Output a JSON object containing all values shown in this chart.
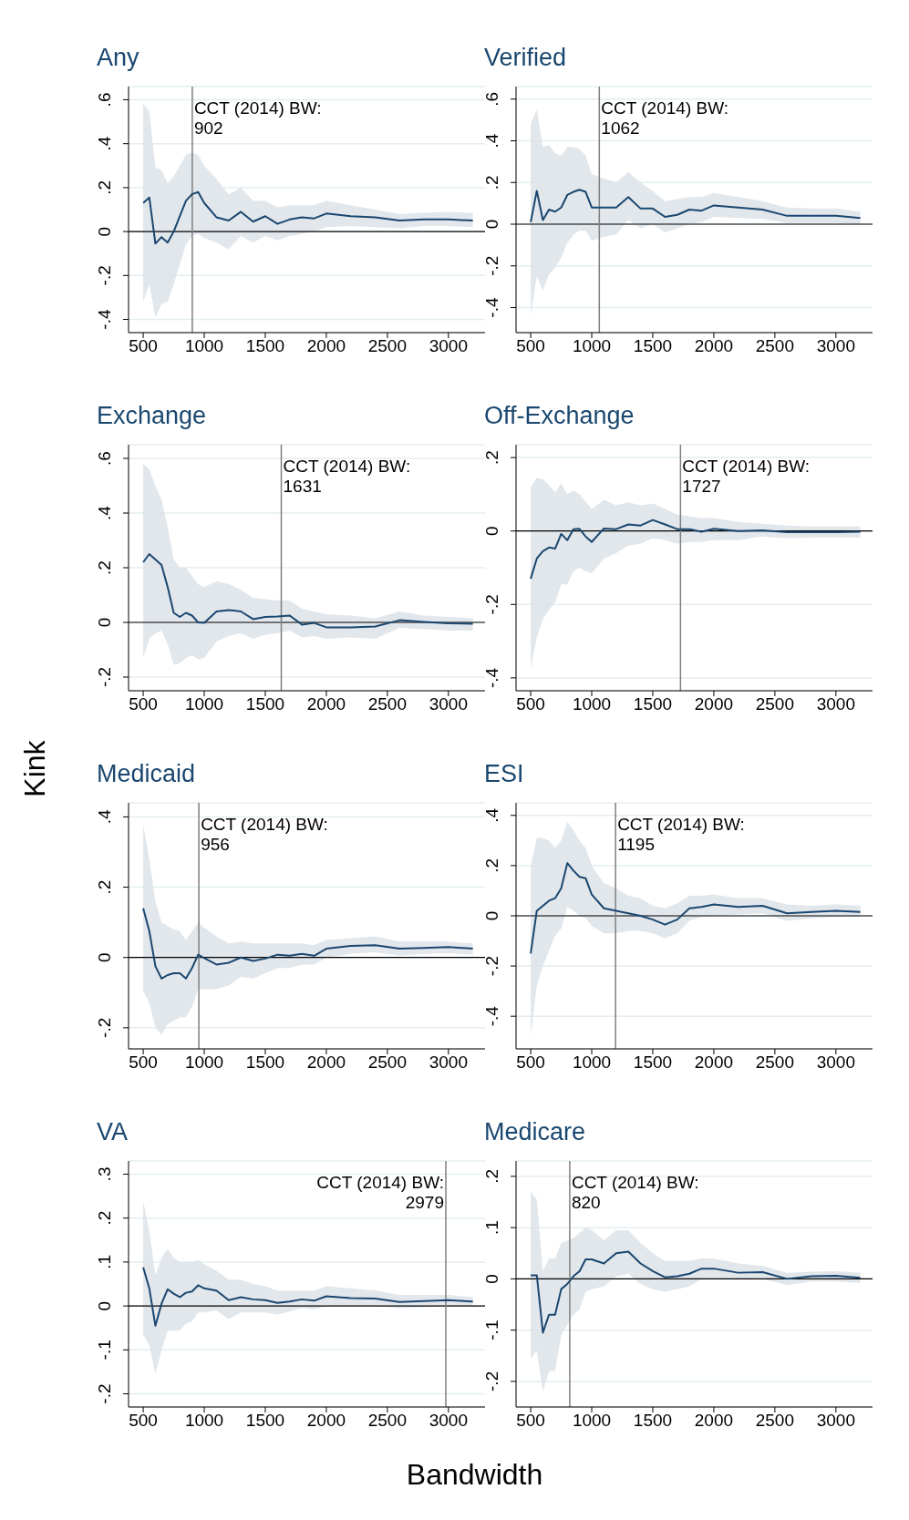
{
  "chart_data": [
    {
      "type": "line",
      "title": "Any",
      "grid": "y",
      "x": [
        500,
        550,
        600,
        650,
        700,
        750,
        800,
        850,
        900,
        950,
        1000,
        1100,
        1200,
        1300,
        1400,
        1500,
        1600,
        1700,
        1800,
        1900,
        2000,
        2200,
        2400,
        2600,
        2800,
        3000,
        3200
      ],
      "xlim": [
        380,
        3300
      ],
      "xticks": [
        500,
        1000,
        1500,
        2000,
        2500,
        3000
      ],
      "ylim": [
        -0.46,
        0.66
      ],
      "yticks": [
        {
          "value": -0.4,
          "label": "-.4"
        },
        {
          "value": -0.2,
          "label": "-.2"
        },
        {
          "value": 0,
          "label": "0"
        },
        {
          "value": 0.2,
          "label": ".2"
        },
        {
          "value": 0.4,
          "label": ".4"
        },
        {
          "value": 0.6,
          "label": ".6"
        }
      ],
      "series": [
        {
          "color": "#1a476f",
          "values": [
            0.13,
            0.155,
            -0.055,
            -0.025,
            -0.05,
            0.0,
            0.07,
            0.14,
            0.17,
            0.18,
            0.13,
            0.065,
            0.05,
            0.09,
            0.045,
            0.07,
            0.035,
            0.055,
            0.065,
            0.06,
            0.082,
            0.07,
            0.065,
            0.05,
            0.055,
            0.055,
            0.05
          ],
          "lower": [
            -0.32,
            -0.24,
            -0.39,
            -0.33,
            -0.32,
            -0.24,
            -0.15,
            -0.06,
            -0.02,
            -0.01,
            -0.03,
            -0.05,
            -0.08,
            -0.02,
            -0.05,
            -0.02,
            -0.04,
            -0.02,
            -0.01,
            0.0,
            0.02,
            0.025,
            0.02,
            0.015,
            0.025,
            0.025,
            0.02
          ],
          "upper": [
            0.58,
            0.55,
            0.29,
            0.28,
            0.22,
            0.25,
            0.3,
            0.35,
            0.36,
            0.35,
            0.3,
            0.24,
            0.17,
            0.2,
            0.14,
            0.14,
            0.11,
            0.12,
            0.12,
            0.12,
            0.14,
            0.12,
            0.1,
            0.08,
            0.085,
            0.09,
            0.085
          ]
        }
      ],
      "ref_lines": [
        {
          "axis": "y",
          "value": 0,
          "color": "#000000"
        },
        {
          "axis": "x",
          "value": 902,
          "label": "CCT (2014) BW: 902",
          "color": "#7f7f7f"
        }
      ]
    },
    {
      "type": "line",
      "title": "Verified",
      "grid": "y",
      "x": [
        500,
        550,
        600,
        650,
        700,
        750,
        800,
        850,
        900,
        950,
        1000,
        1100,
        1200,
        1300,
        1400,
        1500,
        1600,
        1700,
        1800,
        1900,
        2000,
        2200,
        2400,
        2600,
        2800,
        3000,
        3200
      ],
      "xlim": [
        380,
        3300
      ],
      "xticks": [
        500,
        1000,
        1500,
        2000,
        2500,
        3000
      ],
      "ylim": [
        -0.52,
        0.66
      ],
      "yticks": [
        {
          "value": -0.4,
          "label": "-.4"
        },
        {
          "value": -0.2,
          "label": "-.2"
        },
        {
          "value": 0,
          "label": "0"
        },
        {
          "value": 0.2,
          "label": ".2"
        },
        {
          "value": 0.4,
          "label": ".4"
        },
        {
          "value": 0.6,
          "label": ".6"
        }
      ],
      "series": [
        {
          "color": "#1a476f",
          "values": [
            0.01,
            0.16,
            0.02,
            0.07,
            0.06,
            0.08,
            0.14,
            0.155,
            0.165,
            0.155,
            0.08,
            0.08,
            0.08,
            0.13,
            0.075,
            0.075,
            0.035,
            0.045,
            0.07,
            0.065,
            0.09,
            0.08,
            0.07,
            0.04,
            0.04,
            0.04,
            0.03
          ],
          "lower": [
            -0.44,
            -0.25,
            -0.32,
            -0.24,
            -0.21,
            -0.16,
            -0.09,
            -0.05,
            -0.03,
            -0.03,
            -0.08,
            -0.06,
            -0.05,
            0.02,
            -0.02,
            0.0,
            -0.04,
            -0.02,
            0.0,
            0.01,
            0.035,
            0.03,
            0.025,
            0.005,
            0.005,
            0.005,
            0.0
          ],
          "upper": [
            0.48,
            0.55,
            0.37,
            0.38,
            0.34,
            0.33,
            0.37,
            0.37,
            0.36,
            0.33,
            0.24,
            0.22,
            0.2,
            0.25,
            0.2,
            0.16,
            0.11,
            0.12,
            0.13,
            0.13,
            0.15,
            0.13,
            0.11,
            0.08,
            0.075,
            0.075,
            0.06
          ]
        }
      ],
      "ref_lines": [
        {
          "axis": "y",
          "value": 0,
          "color": "#000000"
        },
        {
          "axis": "x",
          "value": 1062,
          "label": "CCT (2014) BW: 1062",
          "color": "#7f7f7f"
        }
      ]
    },
    {
      "type": "line",
      "title": "Exchange",
      "grid": "y",
      "x": [
        500,
        550,
        600,
        650,
        700,
        750,
        800,
        850,
        900,
        950,
        1000,
        1100,
        1200,
        1300,
        1400,
        1500,
        1600,
        1700,
        1800,
        1900,
        2000,
        2200,
        2400,
        2600,
        2800,
        3000,
        3200
      ],
      "xlim": [
        380,
        3300
      ],
      "xticks": [
        500,
        1000,
        1500,
        2000,
        2500,
        3000
      ],
      "ylim": [
        -0.25,
        0.65
      ],
      "yticks": [
        {
          "value": -0.2,
          "label": "-.2"
        },
        {
          "value": 0,
          "label": "0"
        },
        {
          "value": 0.2,
          "label": ".2"
        },
        {
          "value": 0.4,
          "label": ".4"
        },
        {
          "value": 0.6,
          "label": ".6"
        }
      ],
      "series": [
        {
          "color": "#1a476f",
          "values": [
            0.22,
            0.25,
            0.23,
            0.21,
            0.13,
            0.035,
            0.02,
            0.035,
            0.025,
            0.0,
            -0.002,
            0.04,
            0.045,
            0.04,
            0.012,
            0.02,
            0.022,
            0.025,
            -0.008,
            -0.002,
            -0.018,
            -0.018,
            -0.015,
            0.008,
            0.002,
            -0.003,
            -0.005
          ],
          "lower": [
            -0.13,
            -0.06,
            -0.04,
            -0.03,
            -0.08,
            -0.155,
            -0.15,
            -0.13,
            -0.12,
            -0.135,
            -0.13,
            -0.07,
            -0.05,
            -0.04,
            -0.06,
            -0.045,
            -0.04,
            -0.03,
            -0.055,
            -0.05,
            -0.06,
            -0.055,
            -0.06,
            -0.02,
            -0.025,
            -0.03,
            -0.03
          ],
          "upper": [
            0.58,
            0.56,
            0.5,
            0.45,
            0.35,
            0.23,
            0.2,
            0.2,
            0.17,
            0.14,
            0.13,
            0.15,
            0.14,
            0.12,
            0.09,
            0.085,
            0.08,
            0.08,
            0.05,
            0.04,
            0.03,
            0.025,
            0.015,
            0.04,
            0.025,
            0.02,
            0.015
          ]
        }
      ],
      "ref_lines": [
        {
          "axis": "y",
          "value": 0,
          "color": "#000000"
        },
        {
          "axis": "x",
          "value": 1631,
          "label": "CCT (2014) BW: 1631",
          "color": "#7f7f7f"
        }
      ]
    },
    {
      "type": "line",
      "title": "Off-Exchange",
      "grid": "y",
      "x": [
        500,
        550,
        600,
        650,
        700,
        750,
        800,
        850,
        900,
        950,
        1000,
        1100,
        1200,
        1300,
        1400,
        1500,
        1600,
        1700,
        1800,
        1900,
        2000,
        2200,
        2400,
        2600,
        2800,
        3000,
        3200
      ],
      "xlim": [
        380,
        3300
      ],
      "xticks": [
        500,
        1000,
        1500,
        2000,
        2500,
        3000
      ],
      "ylim": [
        -0.435,
        0.235
      ],
      "yticks": [
        {
          "value": -0.4,
          "label": "-.4"
        },
        {
          "value": -0.2,
          "label": "-.2"
        },
        {
          "value": 0,
          "label": "0"
        },
        {
          "value": 0.2,
          "label": ".2"
        }
      ],
      "series": [
        {
          "color": "#1a476f",
          "values": [
            -0.13,
            -0.075,
            -0.055,
            -0.045,
            -0.048,
            -0.008,
            -0.025,
            0.005,
            0.006,
            -0.015,
            -0.03,
            0.007,
            0.005,
            0.018,
            0.015,
            0.03,
            0.018,
            0.005,
            0.005,
            -0.002,
            0.006,
            0.0,
            0.002,
            -0.003,
            -0.003,
            -0.003,
            -0.002
          ],
          "lower": [
            -0.375,
            -0.29,
            -0.24,
            -0.215,
            -0.195,
            -0.145,
            -0.145,
            -0.11,
            -0.1,
            -0.11,
            -0.115,
            -0.075,
            -0.06,
            -0.04,
            -0.035,
            -0.02,
            -0.025,
            -0.035,
            -0.03,
            -0.03,
            -0.025,
            -0.025,
            -0.015,
            -0.02,
            -0.018,
            -0.018,
            -0.018
          ],
          "upper": [
            0.12,
            0.145,
            0.14,
            0.125,
            0.105,
            0.13,
            0.1,
            0.11,
            0.1,
            0.08,
            0.06,
            0.085,
            0.07,
            0.078,
            0.07,
            0.075,
            0.06,
            0.045,
            0.04,
            0.035,
            0.035,
            0.025,
            0.02,
            0.015,
            0.012,
            0.012,
            0.012
          ]
        }
      ],
      "ref_lines": [
        {
          "axis": "y",
          "value": 0,
          "color": "#000000"
        },
        {
          "axis": "x",
          "value": 1727,
          "label": "CCT (2014) BW: 1727",
          "color": "#7f7f7f"
        }
      ]
    },
    {
      "type": "line",
      "title": "Medicaid",
      "ylabel": "Kink",
      "grid": "y",
      "x": [
        500,
        550,
        600,
        650,
        700,
        750,
        800,
        850,
        900,
        950,
        1000,
        1100,
        1200,
        1300,
        1400,
        1500,
        1600,
        1700,
        1800,
        1900,
        2000,
        2200,
        2400,
        2600,
        2800,
        3000,
        3200
      ],
      "xlim": [
        380,
        3300
      ],
      "xticks": [
        500,
        1000,
        1500,
        2000,
        2500,
        3000
      ],
      "ylim": [
        -0.26,
        0.44
      ],
      "yticks": [
        {
          "value": -0.2,
          "label": "-.2"
        },
        {
          "value": 0,
          "label": "0"
        },
        {
          "value": 0.2,
          "label": ".2"
        },
        {
          "value": 0.4,
          "label": ".4"
        }
      ],
      "series": [
        {
          "color": "#1a476f",
          "values": [
            0.14,
            0.075,
            -0.025,
            -0.06,
            -0.05,
            -0.045,
            -0.045,
            -0.06,
            -0.03,
            0.008,
            -0.002,
            -0.02,
            -0.015,
            0.0,
            -0.01,
            -0.003,
            0.008,
            0.005,
            0.01,
            0.005,
            0.025,
            0.033,
            0.035,
            0.025,
            0.027,
            0.03,
            0.025
          ],
          "lower": [
            -0.095,
            -0.13,
            -0.2,
            -0.22,
            -0.19,
            -0.18,
            -0.17,
            -0.17,
            -0.14,
            -0.09,
            -0.09,
            -0.09,
            -0.08,
            -0.055,
            -0.06,
            -0.045,
            -0.03,
            -0.03,
            -0.02,
            -0.02,
            0.0,
            0.01,
            0.015,
            0.005,
            0.01,
            0.012,
            0.008
          ],
          "upper": [
            0.38,
            0.28,
            0.16,
            0.1,
            0.09,
            0.08,
            0.075,
            0.05,
            0.075,
            0.1,
            0.085,
            0.06,
            0.04,
            0.045,
            0.04,
            0.04,
            0.04,
            0.04,
            0.04,
            0.035,
            0.05,
            0.055,
            0.06,
            0.045,
            0.045,
            0.045,
            0.04
          ]
        }
      ],
      "ref_lines": [
        {
          "axis": "y",
          "value": 0,
          "color": "#000000"
        },
        {
          "axis": "x",
          "value": 956,
          "label": "CCT (2014) BW: 956",
          "color": "#7f7f7f"
        }
      ]
    },
    {
      "type": "line",
      "title": "ESI",
      "grid": "y",
      "x": [
        500,
        550,
        600,
        650,
        700,
        750,
        800,
        850,
        900,
        950,
        1000,
        1100,
        1200,
        1300,
        1400,
        1500,
        1600,
        1700,
        1800,
        1900,
        2000,
        2200,
        2400,
        2600,
        2800,
        3000,
        3200
      ],
      "xlim": [
        380,
        3300
      ],
      "xticks": [
        500,
        1000,
        1500,
        2000,
        2500,
        3000
      ],
      "ylim": [
        -0.53,
        0.45
      ],
      "yticks": [
        {
          "value": -0.4,
          "label": "-.4"
        },
        {
          "value": -0.2,
          "label": "-.2"
        },
        {
          "value": 0,
          "label": "0"
        },
        {
          "value": 0.2,
          "label": ".2"
        },
        {
          "value": 0.4,
          "label": ".4"
        }
      ],
      "series": [
        {
          "color": "#1a476f",
          "values": [
            -0.15,
            0.02,
            0.04,
            0.06,
            0.07,
            0.11,
            0.21,
            0.18,
            0.155,
            0.15,
            0.085,
            0.03,
            0.02,
            0.01,
            0.0,
            -0.015,
            -0.035,
            -0.015,
            0.03,
            0.035,
            0.045,
            0.035,
            0.04,
            0.01,
            0.015,
            0.02,
            0.015
          ],
          "lower": [
            -0.48,
            -0.28,
            -0.2,
            -0.14,
            -0.08,
            -0.05,
            0.035,
            0.02,
            0.0,
            -0.01,
            -0.04,
            -0.07,
            -0.07,
            -0.06,
            -0.06,
            -0.07,
            -0.09,
            -0.07,
            -0.02,
            -0.005,
            0.0,
            0.005,
            0.01,
            -0.02,
            -0.01,
            -0.005,
            -0.005
          ],
          "upper": [
            0.2,
            0.31,
            0.31,
            0.3,
            0.27,
            0.3,
            0.375,
            0.34,
            0.3,
            0.27,
            0.2,
            0.13,
            0.11,
            0.08,
            0.07,
            0.04,
            0.03,
            0.05,
            0.08,
            0.08,
            0.085,
            0.07,
            0.07,
            0.045,
            0.04,
            0.045,
            0.04
          ]
        }
      ],
      "ref_lines": [
        {
          "axis": "y",
          "value": 0,
          "color": "#000000"
        },
        {
          "axis": "x",
          "value": 1195,
          "label": "CCT (2014) BW: 1195",
          "color": "#7f7f7f"
        }
      ]
    },
    {
      "type": "line",
      "title": "VA",
      "grid": "y",
      "x": [
        500,
        550,
        600,
        650,
        700,
        750,
        800,
        850,
        900,
        950,
        1000,
        1100,
        1200,
        1300,
        1400,
        1500,
        1600,
        1700,
        1800,
        1900,
        2000,
        2200,
        2400,
        2600,
        2800,
        3000,
        3200
      ],
      "xlim": [
        380,
        3300
      ],
      "xticks": [
        500,
        1000,
        1500,
        2000,
        2500,
        3000
      ],
      "ylim": [
        -0.23,
        0.33
      ],
      "yticks": [
        {
          "value": -0.2,
          "label": "-.2"
        },
        {
          "value": -0.1,
          "label": "-.1"
        },
        {
          "value": 0,
          "label": "0"
        },
        {
          "value": 0.1,
          "label": ".1"
        },
        {
          "value": 0.2,
          "label": ".2"
        },
        {
          "value": 0.3,
          "label": ".3"
        }
      ],
      "series": [
        {
          "color": "#1a476f",
          "values": [
            0.088,
            0.04,
            -0.045,
            0.005,
            0.038,
            0.028,
            0.02,
            0.03,
            0.033,
            0.047,
            0.04,
            0.035,
            0.013,
            0.02,
            0.015,
            0.013,
            0.007,
            0.01,
            0.015,
            0.012,
            0.022,
            0.018,
            0.017,
            0.009,
            0.011,
            0.013,
            0.01
          ],
          "lower": [
            -0.065,
            -0.09,
            -0.155,
            -0.1,
            -0.057,
            -0.057,
            -0.055,
            -0.04,
            -0.035,
            -0.015,
            -0.015,
            -0.01,
            -0.03,
            -0.015,
            -0.015,
            -0.015,
            -0.02,
            -0.012,
            -0.005,
            -0.008,
            0.0,
            0.0,
            0.0,
            -0.005,
            -0.003,
            0.0,
            0.0
          ],
          "upper": [
            0.24,
            0.17,
            0.07,
            0.11,
            0.13,
            0.11,
            0.1,
            0.1,
            0.1,
            0.105,
            0.095,
            0.08,
            0.06,
            0.06,
            0.05,
            0.045,
            0.035,
            0.035,
            0.035,
            0.035,
            0.045,
            0.04,
            0.035,
            0.025,
            0.025,
            0.025,
            0.02
          ]
        }
      ],
      "ref_lines": [
        {
          "axis": "y",
          "value": 0,
          "color": "#000000"
        },
        {
          "axis": "x",
          "value": 2979,
          "label": "CCT (2014) BW: 2979",
          "color": "#7f7f7f"
        }
      ]
    },
    {
      "type": "line",
      "title": "Medicare",
      "xlabel": "Bandwidth",
      "grid": "y",
      "x": [
        500,
        550,
        600,
        650,
        700,
        750,
        800,
        850,
        900,
        950,
        1000,
        1100,
        1200,
        1300,
        1400,
        1500,
        1600,
        1700,
        1800,
        1900,
        2000,
        2200,
        2400,
        2600,
        2800,
        3000,
        3200
      ],
      "xlim": [
        380,
        3300
      ],
      "xticks": [
        500,
        1000,
        1500,
        2000,
        2500,
        3000
      ],
      "ylim": [
        -0.25,
        0.23
      ],
      "yticks": [
        {
          "value": -0.2,
          "label": "-.2"
        },
        {
          "value": -0.1,
          "label": "-.1"
        },
        {
          "value": 0,
          "label": "0"
        },
        {
          "value": 0.1,
          "label": ".1"
        },
        {
          "value": 0.2,
          "label": ".2"
        }
      ],
      "series": [
        {
          "color": "#1a476f",
          "values": [
            0.007,
            0.007,
            -0.105,
            -0.07,
            -0.07,
            -0.02,
            -0.01,
            0.005,
            0.015,
            0.038,
            0.038,
            0.03,
            0.05,
            0.053,
            0.03,
            0.015,
            0.003,
            0.005,
            0.01,
            0.02,
            0.02,
            0.012,
            0.013,
            0.0,
            0.005,
            0.006,
            0.002
          ],
          "lower": [
            -0.155,
            -0.14,
            -0.22,
            -0.18,
            -0.18,
            -0.11,
            -0.09,
            -0.07,
            -0.06,
            -0.025,
            -0.02,
            -0.015,
            0.005,
            0.01,
            -0.01,
            -0.02,
            -0.025,
            -0.02,
            -0.015,
            0.0,
            0.0,
            0.0,
            0.0,
            -0.012,
            -0.005,
            -0.005,
            -0.008
          ],
          "upper": [
            0.17,
            0.155,
            0.015,
            0.04,
            0.04,
            0.07,
            0.075,
            0.08,
            0.09,
            0.1,
            0.095,
            0.075,
            0.095,
            0.095,
            0.07,
            0.05,
            0.035,
            0.035,
            0.035,
            0.04,
            0.04,
            0.03,
            0.025,
            0.012,
            0.014,
            0.015,
            0.012
          ]
        }
      ],
      "ref_lines": [
        {
          "axis": "y",
          "value": 0,
          "color": "#000000"
        },
        {
          "axis": "x",
          "value": 820,
          "label": "CCT (2014) BW: 820",
          "color": "#7f7f7f"
        }
      ]
    }
  ]
}
